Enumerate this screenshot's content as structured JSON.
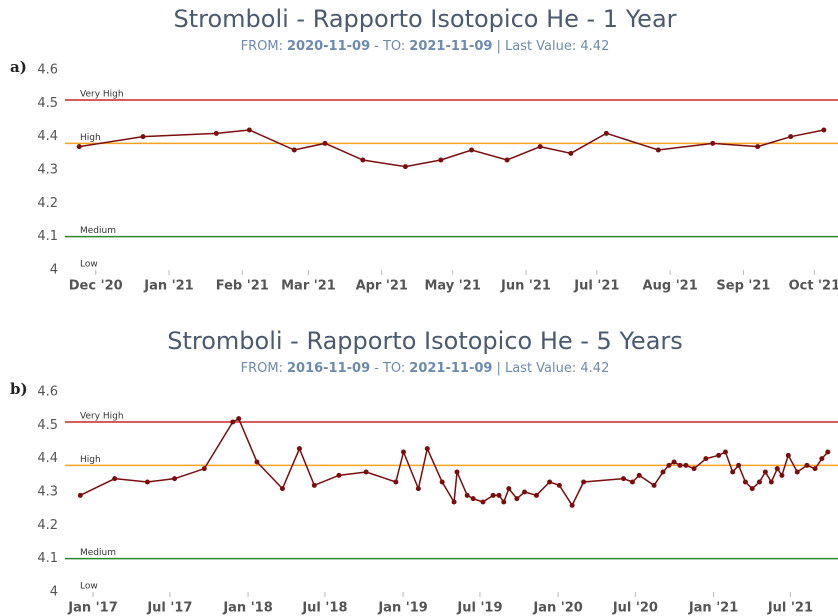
{
  "chart_data": [
    {
      "type": "line",
      "panel": "a)",
      "title": "Stromboli - Rapporto Isotopico He - 1 Year",
      "subtitle": [
        "FROM:",
        "2020-11-09",
        "- TO:",
        "2021-11-09",
        "| Last Value: 4.42"
      ],
      "color": "#7b0d0d",
      "x": [
        "2020-11-24",
        "2020-12-21",
        "2021-01-21",
        "2021-02-04",
        "2021-02-23",
        "2021-03-08",
        "2021-03-24",
        "2021-04-11",
        "2021-04-26",
        "2021-05-09",
        "2021-05-24",
        "2021-06-07",
        "2021-06-20",
        "2021-07-05",
        "2021-07-27",
        "2021-08-19",
        "2021-09-07",
        "2021-09-21",
        "2021-10-05"
      ],
      "values": [
        4.37,
        4.4,
        4.41,
        4.42,
        4.36,
        4.38,
        4.33,
        4.31,
        4.33,
        4.36,
        4.33,
        4.37,
        4.35,
        4.41,
        4.36,
        4.38,
        4.37,
        4.4,
        4.42
      ],
      "xlim": [
        "2020-11-18",
        "2021-10-11"
      ],
      "xticks": [
        {
          "value": "2020-12-01",
          "label": "Dec '20"
        },
        {
          "value": "2021-01-01",
          "label": "Jan '21"
        },
        {
          "value": "2021-02-01",
          "label": "Feb '21"
        },
        {
          "value": "2021-03-01",
          "label": "Mar '21"
        },
        {
          "value": "2021-04-01",
          "label": "Apr '21"
        },
        {
          "value": "2021-05-01",
          "label": "May '21"
        },
        {
          "value": "2021-06-01",
          "label": "Jun '21"
        },
        {
          "value": "2021-07-01",
          "label": "Jul '21"
        },
        {
          "value": "2021-08-01",
          "label": "Aug '21"
        },
        {
          "value": "2021-09-01",
          "label": "Sep '21"
        },
        {
          "value": "2021-10-01",
          "label": "Oct '21"
        }
      ],
      "ylim": [
        4,
        4.6
      ],
      "yticks": [
        4,
        4.1,
        4.2,
        4.3,
        4.4,
        4.5,
        4.6
      ],
      "thresholds": [
        {
          "label": "Very High",
          "value": 4.51,
          "color": "#c8262c"
        },
        {
          "label": "High",
          "value": 4.38,
          "color": "#f5a422"
        },
        {
          "label": "Medium",
          "value": 4.1,
          "color": "#2a8a2a"
        },
        {
          "label": "Low",
          "value": 4.0
        }
      ]
    },
    {
      "type": "line",
      "panel": "b)",
      "title": "Stromboli - Rapporto Isotopico He - 5 Years",
      "subtitle": [
        "FROM:",
        "2016-11-09",
        "- TO:",
        "2021-11-09",
        "| Last Value: 4.42"
      ],
      "color": "#7b0d0d",
      "x": [
        "2016-12-02",
        "2017-02-21",
        "2017-05-09",
        "2017-07-12",
        "2017-09-20",
        "2017-11-26",
        "2017-12-10",
        "2018-01-22",
        "2018-03-23",
        "2018-05-02",
        "2018-06-06",
        "2018-08-03",
        "2018-10-06",
        "2018-12-15",
        "2019-01-02",
        "2019-02-06",
        "2019-02-27",
        "2019-04-03",
        "2019-05-01",
        "2019-05-08",
        "2019-06-01",
        "2019-06-15",
        "2019-07-08",
        "2019-08-01",
        "2019-08-15",
        "2019-08-26",
        "2019-09-07",
        "2019-09-26",
        "2019-10-14",
        "2019-11-11",
        "2019-12-12",
        "2020-01-04",
        "2020-02-03",
        "2020-03-01",
        "2020-06-03",
        "2020-06-24",
        "2020-07-10",
        "2020-08-14",
        "2020-09-04",
        "2020-09-18",
        "2020-09-30",
        "2020-10-14",
        "2020-10-28",
        "2020-11-16",
        "2020-12-14",
        "2021-01-13",
        "2021-01-29",
        "2021-02-15",
        "2021-03-01",
        "2021-03-17",
        "2021-04-02",
        "2021-04-19",
        "2021-05-03",
        "2021-05-17",
        "2021-05-31",
        "2021-06-11",
        "2021-06-26",
        "2021-07-17",
        "2021-08-09",
        "2021-08-28",
        "2021-09-13",
        "2021-09-27"
      ],
      "values": [
        4.29,
        4.34,
        4.33,
        4.34,
        4.37,
        4.51,
        4.52,
        4.39,
        4.31,
        4.43,
        4.32,
        4.35,
        4.36,
        4.33,
        4.42,
        4.31,
        4.43,
        4.33,
        4.27,
        4.36,
        4.29,
        4.28,
        4.27,
        4.29,
        4.29,
        4.27,
        4.31,
        4.28,
        4.3,
        4.29,
        4.33,
        4.32,
        4.26,
        4.33,
        4.34,
        4.33,
        4.35,
        4.32,
        4.36,
        4.38,
        4.39,
        4.38,
        4.38,
        4.37,
        4.4,
        4.41,
        4.42,
        4.36,
        4.38,
        4.33,
        4.31,
        4.33,
        4.36,
        4.33,
        4.37,
        4.35,
        4.41,
        4.36,
        4.38,
        4.37,
        4.4,
        4.42
      ],
      "xlim": [
        "2016-10-27",
        "2021-10-21"
      ],
      "xticks": [
        {
          "value": "2017-01-01",
          "label": "Jan '17"
        },
        {
          "value": "2017-07-01",
          "label": "Jul '17"
        },
        {
          "value": "2018-01-01",
          "label": "Jan '18"
        },
        {
          "value": "2018-07-01",
          "label": "Jul '18"
        },
        {
          "value": "2019-01-01",
          "label": "Jan '19"
        },
        {
          "value": "2019-07-01",
          "label": "Jul '19"
        },
        {
          "value": "2020-01-01",
          "label": "Jan '20"
        },
        {
          "value": "2020-07-01",
          "label": "Jul '20"
        },
        {
          "value": "2021-01-01",
          "label": "Jan '21"
        },
        {
          "value": "2021-07-01",
          "label": "Jul '21"
        }
      ],
      "ylim": [
        4,
        4.6
      ],
      "yticks": [
        4,
        4.1,
        4.2,
        4.3,
        4.4,
        4.5,
        4.6
      ],
      "thresholds": [
        {
          "label": "Very High",
          "value": 4.51,
          "color": "#c8262c"
        },
        {
          "label": "High",
          "value": 4.38,
          "color": "#f5a422"
        },
        {
          "label": "Medium",
          "value": 4.1,
          "color": "#2a8a2a"
        },
        {
          "label": "Low",
          "value": 4.0
        }
      ]
    }
  ]
}
